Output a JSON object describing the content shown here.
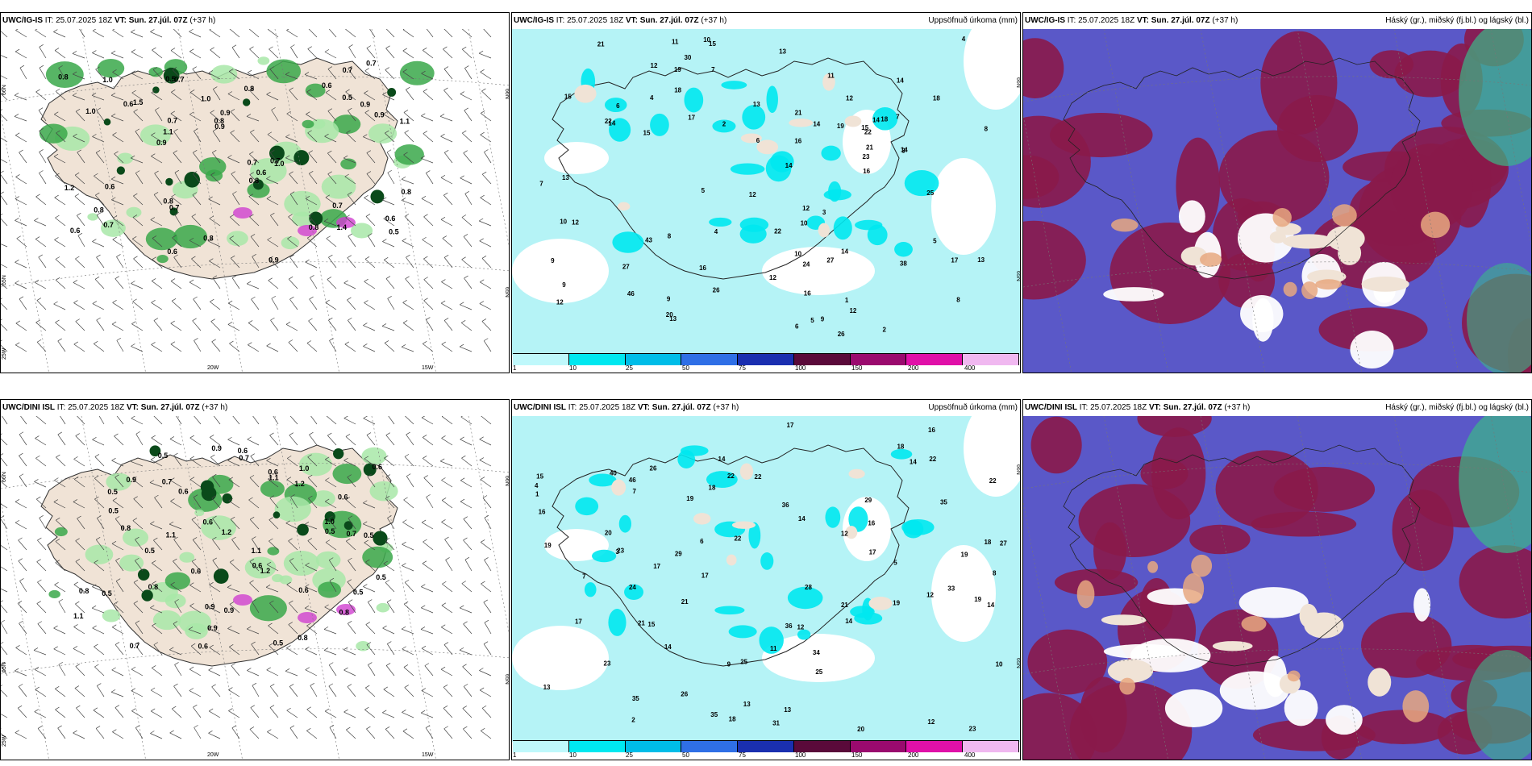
{
  "panels": [
    {
      "id": "p1",
      "model": "UWC/IG-IS",
      "it_label": "IT:",
      "it": "25.07.2025 18Z",
      "vt_label": "VT:",
      "vt": "Sun. 27.júl. 07Z",
      "lead": "(+37 h)",
      "right_title": "",
      "type": "precip_wind",
      "lat_labels": [
        "66N",
        "65N",
        "25W"
      ],
      "lon_labels": [
        "20W",
        "15W"
      ],
      "right_lat_labels": [
        "66N",
        "65N"
      ]
    },
    {
      "id": "p2",
      "model": "UWC/IG-IS",
      "it_label": "IT:",
      "it": "25.07.2025 18Z",
      "vt_label": "VT:",
      "vt": "Sun. 27.júl. 07Z",
      "lead": "(+37 h)",
      "right_title": "Uppsöfnuð úrkoma (mm)",
      "type": "accum",
      "lat_labels": [],
      "lon_labels": [],
      "right_lat_labels": [
        "66N",
        "65N"
      ]
    },
    {
      "id": "p3",
      "model": "UWC/IG-IS",
      "it_label": "IT:",
      "it": "25.07.2025 18Z",
      "vt_label": "VT:",
      "vt": "Sun. 27.júl. 07Z",
      "lead": "(+37 h)",
      "right_title": "Háský (gr.), miðský (fj.bl.) og lágský (bl.)",
      "type": "clouds",
      "lat_labels": [],
      "lon_labels": [],
      "right_lat_labels": []
    },
    {
      "id": "p4",
      "model": "UWC/DINI ISL",
      "it_label": "IT:",
      "it": "25.07.2025 18Z",
      "vt_label": "VT:",
      "vt": "Sun. 27.júl. 07Z",
      "lead": "(+37 h)",
      "right_title": "",
      "type": "precip_wind",
      "lat_labels": [
        "66N",
        "65N",
        "25W"
      ],
      "lon_labels": [
        "20W",
        "15W"
      ],
      "right_lat_labels": [
        "66N",
        "65N"
      ]
    },
    {
      "id": "p5",
      "model": "UWC/DINI ISL",
      "it_label": "IT:",
      "it": "25.07.2025 18Z",
      "vt_label": "VT:",
      "vt": "Sun. 27.júl. 07Z",
      "lead": "(+37 h)",
      "right_title": "Uppsöfnuð úrkoma (mm)",
      "type": "accum",
      "lat_labels": [],
      "lon_labels": [],
      "right_lat_labels": [
        "66N",
        "65N"
      ]
    },
    {
      "id": "p6",
      "model": "UWC/DINI ISL",
      "it_label": "IT:",
      "it": "25.07.2025 18Z",
      "vt_label": "VT:",
      "vt": "Sun. 27.júl. 07Z",
      "lead": "(+37 h)",
      "right_title": "Háský (gr.), miðský (fj.bl.) og lágský (bl.)",
      "type": "clouds",
      "lat_labels": [],
      "lon_labels": [],
      "right_lat_labels": []
    }
  ],
  "colorbar": {
    "labels": [
      "1",
      "10",
      "25",
      "50",
      "75",
      "100",
      "150",
      "200",
      "400"
    ],
    "colors": [
      "#bff8fb",
      "#00e8f0",
      "#00bde8",
      "#2f6fe6",
      "#1a2fb0",
      "#5a0a3a",
      "#9a0a6e",
      "#e010a8",
      "#f0b8f0"
    ]
  },
  "colors": {
    "land": "#f0e3d6",
    "sea_precip": "#b5f3f6",
    "precip_light": "#a8e8a8",
    "precip_mid": "#3aa84a",
    "precip_heavy": "#0a4a1a",
    "cloud_high": "#8a1a4a",
    "cloud_mid": "#5a58c8",
    "cloud_low": "#e8a880",
    "cloud_green": "#3ab888"
  },
  "p1_values": [
    "1.4",
    "1.1",
    "0.7",
    "0.9",
    "0.8",
    "0.6",
    "0.5",
    "1.0",
    "1.2",
    "1.5",
    "0.6",
    "0.8",
    "0.7",
    "0.9",
    "1.0",
    "0.8",
    "0.6",
    "0.9",
    "0.7",
    "0.5",
    "1.1",
    "0.8",
    "0.7",
    "1.0",
    "0.9",
    "0.6",
    "0.8",
    "0.7",
    "0.7",
    "0.8",
    "0.6",
    "1.0",
    "0.8",
    "0.7",
    "0.9",
    "0.8",
    "0.5",
    "0.7",
    "0.9",
    "0.8",
    "0.6",
    "0.7",
    "0.6"
  ],
  "p4_values": [
    "0.5",
    "0.6",
    "0.6",
    "0.9",
    "0.5",
    "1.1",
    "0.9",
    "1.2",
    "1.1",
    "0.8",
    "0.6",
    "0.5",
    "0.7",
    "1.0",
    "1.1",
    "0.9",
    "0.8",
    "0.7",
    "0.6",
    "0.5",
    "0.8",
    "0.6",
    "1.1",
    "0.9",
    "0.7",
    "1.0",
    "1.2",
    "0.8",
    "0.6",
    "0.5",
    "0.9",
    "0.5",
    "0.7",
    "0.6",
    "0.5",
    "0.6",
    "0.5",
    "0.6",
    "1.2",
    "0.8",
    "0.5",
    "0.6",
    "0.5"
  ],
  "p2_values": [
    "13",
    "16",
    "15",
    "12",
    "14",
    "8",
    "9",
    "10",
    "12",
    "14",
    "13",
    "15",
    "16",
    "12",
    "14",
    "15",
    "12",
    "13",
    "14",
    "11",
    "15",
    "12",
    "10",
    "9",
    "7",
    "5",
    "4",
    "6",
    "9",
    "10",
    "12",
    "13",
    "17",
    "19",
    "26",
    "27",
    "22",
    "21",
    "24",
    "46",
    "43",
    "22",
    "21",
    "30",
    "38",
    "18",
    "20",
    "23",
    "14",
    "12",
    "9",
    "8",
    "6",
    "5",
    "4",
    "3",
    "2",
    "7",
    "14",
    "11",
    "10",
    "8",
    "25",
    "17",
    "27",
    "16",
    "18",
    "26",
    "21",
    "22",
    "19",
    "18",
    "14",
    "13",
    "16",
    "12",
    "3",
    "2",
    "1",
    "4",
    "6",
    "5",
    "7"
  ],
  "p5_values": [
    "19",
    "22",
    "17",
    "14",
    "18",
    "16",
    "14",
    "20",
    "26",
    "40",
    "19",
    "15",
    "17",
    "13",
    "12",
    "15",
    "18",
    "22",
    "23",
    "19",
    "21",
    "25",
    "19",
    "33",
    "35",
    "31",
    "22",
    "34",
    "36",
    "29",
    "28",
    "25",
    "16",
    "14",
    "12",
    "17",
    "23",
    "21",
    "46",
    "22",
    "18",
    "17",
    "35",
    "36",
    "24",
    "20",
    "12",
    "13",
    "14",
    "16",
    "11",
    "10",
    "9",
    "8",
    "7",
    "6",
    "5",
    "4",
    "3",
    "2",
    "1",
    "7",
    "12",
    "13",
    "14",
    "18",
    "21",
    "17",
    "22",
    "14",
    "19",
    "26",
    "29",
    "23",
    "27",
    "35"
  ]
}
